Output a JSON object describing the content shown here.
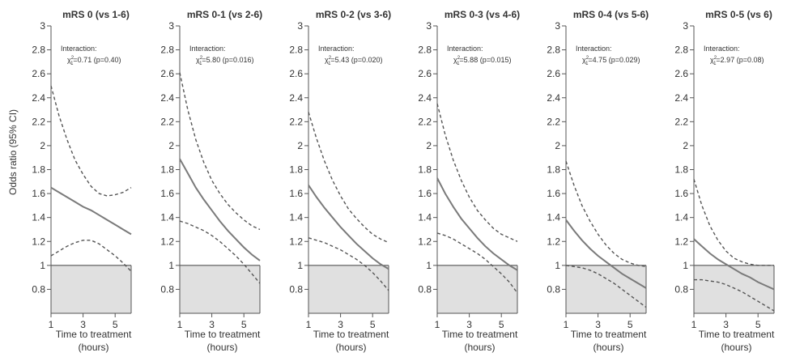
{
  "figure": {
    "ylabel": "Odds ratio (95% CI)",
    "xlabel_line1": "Time to treatment",
    "xlabel_line2": "(hours)"
  },
  "chart_data": [
    {
      "type": "line",
      "title": "mRS 0 (vs 1-6)",
      "annotation_title": "Interaction:",
      "annotation_stat": "=0.71 (p=0.40)",
      "x_ticks": [
        1,
        3,
        5
      ],
      "y_ticks": [
        0.8,
        1,
        1.2,
        1.4,
        1.6,
        1.8,
        2,
        2.2,
        2.4,
        2.6,
        2.8,
        3
      ],
      "xlim": [
        1,
        6
      ],
      "ylim": [
        0.6,
        3
      ],
      "reference_line": 1,
      "x": [
        1,
        1.5,
        2,
        2.5,
        3,
        3.5,
        4,
        4.5,
        5,
        5.5,
        6
      ],
      "series": [
        {
          "role": "estimate",
          "style": "solid",
          "values": [
            1.65,
            1.61,
            1.57,
            1.53,
            1.49,
            1.46,
            1.42,
            1.38,
            1.34,
            1.3,
            1.26
          ]
        },
        {
          "role": "upper",
          "style": "dashed",
          "values": [
            2.5,
            2.25,
            2.05,
            1.88,
            1.76,
            1.66,
            1.6,
            1.58,
            1.59,
            1.61,
            1.65
          ]
        },
        {
          "role": "lower",
          "style": "dashed",
          "values": [
            1.08,
            1.12,
            1.16,
            1.19,
            1.21,
            1.21,
            1.18,
            1.13,
            1.08,
            1.02,
            0.95
          ]
        }
      ]
    },
    {
      "type": "line",
      "title": "mRS 0-1 (vs 2-6)",
      "annotation_title": "Interaction:",
      "annotation_stat": "=5.80 (p=0.016)",
      "x_ticks": [
        1,
        3,
        5
      ],
      "y_ticks": [
        0.8,
        1,
        1.2,
        1.4,
        1.6,
        1.8,
        2,
        2.2,
        2.4,
        2.6,
        2.8,
        3
      ],
      "xlim": [
        1,
        6
      ],
      "ylim": [
        0.6,
        3
      ],
      "reference_line": 1,
      "x": [
        1,
        1.5,
        2,
        2.5,
        3,
        3.5,
        4,
        4.5,
        5,
        5.5,
        6
      ],
      "series": [
        {
          "role": "estimate",
          "style": "solid",
          "values": [
            1.89,
            1.77,
            1.65,
            1.55,
            1.46,
            1.37,
            1.29,
            1.22,
            1.15,
            1.09,
            1.04
          ]
        },
        {
          "role": "upper",
          "style": "dashed",
          "values": [
            2.61,
            2.3,
            2.05,
            1.86,
            1.71,
            1.6,
            1.51,
            1.44,
            1.38,
            1.33,
            1.3
          ]
        },
        {
          "role": "lower",
          "style": "dashed",
          "values": [
            1.37,
            1.35,
            1.32,
            1.29,
            1.25,
            1.2,
            1.14,
            1.08,
            1.01,
            0.93,
            0.85
          ]
        }
      ]
    },
    {
      "type": "line",
      "title": "mRS 0-2 (vs 3-6)",
      "annotation_title": "Interaction:",
      "annotation_stat": "=5.43 (p=0.020)",
      "x_ticks": [
        1,
        3,
        5
      ],
      "y_ticks": [
        0.8,
        1,
        1.2,
        1.4,
        1.6,
        1.8,
        2,
        2.2,
        2.4,
        2.6,
        2.8,
        3
      ],
      "xlim": [
        1,
        6
      ],
      "ylim": [
        0.6,
        3
      ],
      "reference_line": 1,
      "x": [
        1,
        1.5,
        2,
        2.5,
        3,
        3.5,
        4,
        4.5,
        5,
        5.5,
        6
      ],
      "series": [
        {
          "role": "estimate",
          "style": "solid",
          "values": [
            1.67,
            1.57,
            1.48,
            1.4,
            1.32,
            1.25,
            1.18,
            1.12,
            1.06,
            1.01,
            0.97
          ]
        },
        {
          "role": "upper",
          "style": "dashed",
          "values": [
            2.28,
            2.06,
            1.87,
            1.71,
            1.58,
            1.47,
            1.39,
            1.32,
            1.26,
            1.22,
            1.19
          ]
        },
        {
          "role": "lower",
          "style": "dashed",
          "values": [
            1.23,
            1.21,
            1.19,
            1.16,
            1.13,
            1.09,
            1.05,
            1.0,
            0.94,
            0.87,
            0.79
          ]
        }
      ]
    },
    {
      "type": "line",
      "title": "mRS 0-3 (vs 4-6)",
      "annotation_title": "Interaction:",
      "annotation_stat": "=5.88 (p=0.015)",
      "x_ticks": [
        1,
        3,
        5
      ],
      "y_ticks": [
        0.8,
        1,
        1.2,
        1.4,
        1.6,
        1.8,
        2,
        2.2,
        2.4,
        2.6,
        2.8,
        3
      ],
      "xlim": [
        1,
        6
      ],
      "ylim": [
        0.6,
        3
      ],
      "reference_line": 1,
      "x": [
        1,
        1.5,
        2,
        2.5,
        3,
        3.5,
        4,
        4.5,
        5,
        5.5,
        6
      ],
      "series": [
        {
          "role": "estimate",
          "style": "solid",
          "values": [
            1.73,
            1.6,
            1.49,
            1.39,
            1.31,
            1.23,
            1.16,
            1.1,
            1.05,
            1.0,
            0.96
          ]
        },
        {
          "role": "upper",
          "style": "dashed",
          "values": [
            2.35,
            2.09,
            1.88,
            1.71,
            1.57,
            1.46,
            1.38,
            1.31,
            1.26,
            1.23,
            1.2
          ]
        },
        {
          "role": "lower",
          "style": "dashed",
          "values": [
            1.27,
            1.25,
            1.22,
            1.18,
            1.14,
            1.1,
            1.05,
            0.99,
            0.93,
            0.86,
            0.77
          ]
        }
      ]
    },
    {
      "type": "line",
      "title": "mRS 0-4 (vs 5-6)",
      "annotation_title": "Interaction:",
      "annotation_stat": "=4.75 (p=0.029)",
      "x_ticks": [
        1,
        3,
        5
      ],
      "y_ticks": [
        0.8,
        1,
        1.2,
        1.4,
        1.6,
        1.8,
        2,
        2.2,
        2.4,
        2.6,
        2.8,
        3
      ],
      "xlim": [
        1,
        6
      ],
      "ylim": [
        0.6,
        3
      ],
      "reference_line": 1,
      "x": [
        1,
        1.5,
        2,
        2.5,
        3,
        3.5,
        4,
        4.5,
        5,
        5.5,
        6
      ],
      "series": [
        {
          "role": "estimate",
          "style": "solid",
          "values": [
            1.38,
            1.29,
            1.21,
            1.14,
            1.08,
            1.03,
            0.98,
            0.93,
            0.89,
            0.85,
            0.81
          ]
        },
        {
          "role": "upper",
          "style": "dashed",
          "values": [
            1.87,
            1.67,
            1.5,
            1.37,
            1.26,
            1.17,
            1.1,
            1.05,
            1.02,
            1.0,
            0.99
          ]
        },
        {
          "role": "lower",
          "style": "dashed",
          "values": [
            1.0,
            0.99,
            0.98,
            0.96,
            0.93,
            0.89,
            0.85,
            0.8,
            0.75,
            0.7,
            0.65
          ]
        }
      ]
    },
    {
      "type": "line",
      "title": "mRS 0-5 (vs 6)",
      "annotation_title": "Interaction:",
      "annotation_stat": "=2.97 (p=0.08)",
      "x_ticks": [
        1,
        3,
        5
      ],
      "y_ticks": [
        0.8,
        1,
        1.2,
        1.4,
        1.6,
        1.8,
        2,
        2.2,
        2.4,
        2.6,
        2.8,
        3
      ],
      "xlim": [
        1,
        6
      ],
      "ylim": [
        0.6,
        3
      ],
      "reference_line": 1,
      "x": [
        1,
        1.5,
        2,
        2.5,
        3,
        3.5,
        4,
        4.5,
        5,
        5.5,
        6
      ],
      "series": [
        {
          "role": "estimate",
          "style": "solid",
          "values": [
            1.22,
            1.16,
            1.1,
            1.05,
            1.01,
            0.97,
            0.93,
            0.9,
            0.86,
            0.83,
            0.8
          ]
        },
        {
          "role": "upper",
          "style": "dashed",
          "values": [
            1.72,
            1.5,
            1.33,
            1.21,
            1.12,
            1.06,
            1.03,
            1.01,
            1.0,
            1.0,
            1.0
          ]
        },
        {
          "role": "lower",
          "style": "dashed",
          "values": [
            0.88,
            0.88,
            0.87,
            0.86,
            0.84,
            0.81,
            0.78,
            0.74,
            0.7,
            0.66,
            0.62
          ]
        }
      ]
    }
  ]
}
